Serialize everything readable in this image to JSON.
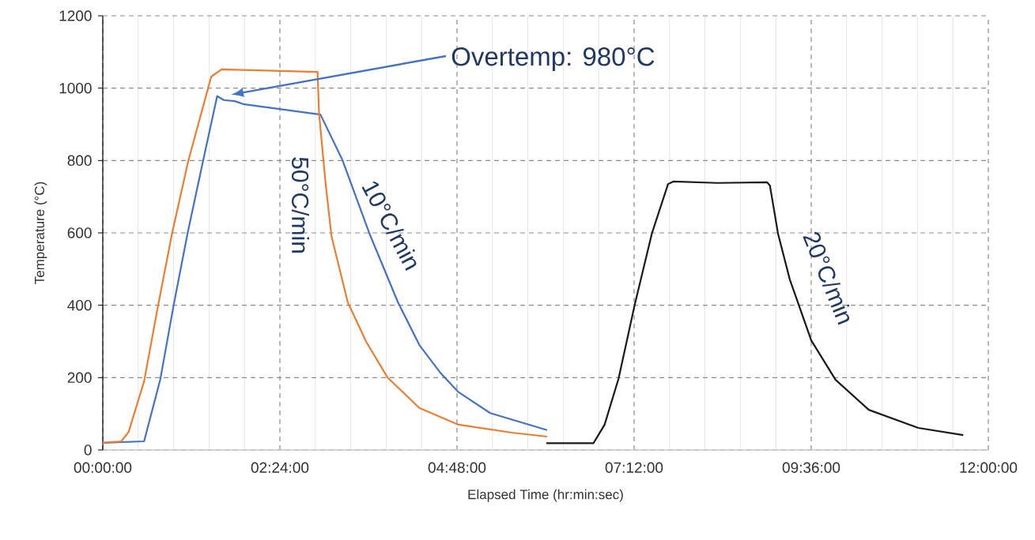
{
  "chart_data": {
    "type": "line",
    "xlabel": "Elapsed Time (hr:min:sec)",
    "ylabel": "Temperature (°C)",
    "xlim": [
      0,
      12
    ],
    "ylim": [
      0,
      1200
    ],
    "xticks": [
      {
        "value": 0,
        "label": "00:00:00"
      },
      {
        "value": 2.4,
        "label": "02:24:00"
      },
      {
        "value": 4.8,
        "label": "04:48:00"
      },
      {
        "value": 7.2,
        "label": "07:12:00"
      },
      {
        "value": 9.6,
        "label": "09:36:00"
      },
      {
        "value": 12,
        "label": "12:00:00"
      }
    ],
    "yticks": [
      0,
      200,
      400,
      600,
      800,
      1000,
      1200
    ],
    "grid": true,
    "marker": "none",
    "line_style": "solid",
    "series": [
      {
        "color": "#ed7d31",
        "x": [
          0,
          0.25,
          0.35,
          0.56,
          0.75,
          0.94,
          1.16,
          1.47,
          1.61,
          2.91,
          2.93,
          3.02,
          3.1,
          3.32,
          3.57,
          3.86,
          4.29,
          4.82,
          5.54,
          6.02
        ],
        "values": [
          20,
          24,
          50,
          190,
          400,
          600,
          800,
          1032,
          1052,
          1045,
          932,
          735,
          590,
          408,
          299,
          200,
          116,
          70,
          48,
          37
        ]
      },
      {
        "color": "#4472c4",
        "x": [
          0,
          0.56,
          0.78,
          0.96,
          1.15,
          1.36,
          1.55,
          1.64,
          1.79,
          1.9,
          2.95,
          3.25,
          3.61,
          4.0,
          4.29,
          4.58,
          4.82,
          5.25,
          6.02
        ],
        "values": [
          20,
          24,
          196,
          400,
          600,
          800,
          978,
          967,
          964,
          956,
          927,
          800,
          600,
          408,
          290,
          212,
          160,
          102,
          55
        ]
      },
      {
        "color": "#1a1a1a",
        "x": [
          6.01,
          6.65,
          6.8,
          6.99,
          7.21,
          7.44,
          7.66,
          7.73,
          8.33,
          9.0,
          9.04,
          9.15,
          9.31,
          9.6,
          9.93,
          10.38,
          11.05,
          11.66
        ],
        "values": [
          19,
          19,
          70,
          198,
          403,
          598,
          735,
          742,
          738,
          740,
          731,
          598,
          471,
          303,
          194,
          111,
          61,
          41
        ]
      }
    ],
    "annotations": [
      "Overtemp: 980°C",
      "50°C/min",
      "10°C/min",
      "20°C/min"
    ]
  }
}
